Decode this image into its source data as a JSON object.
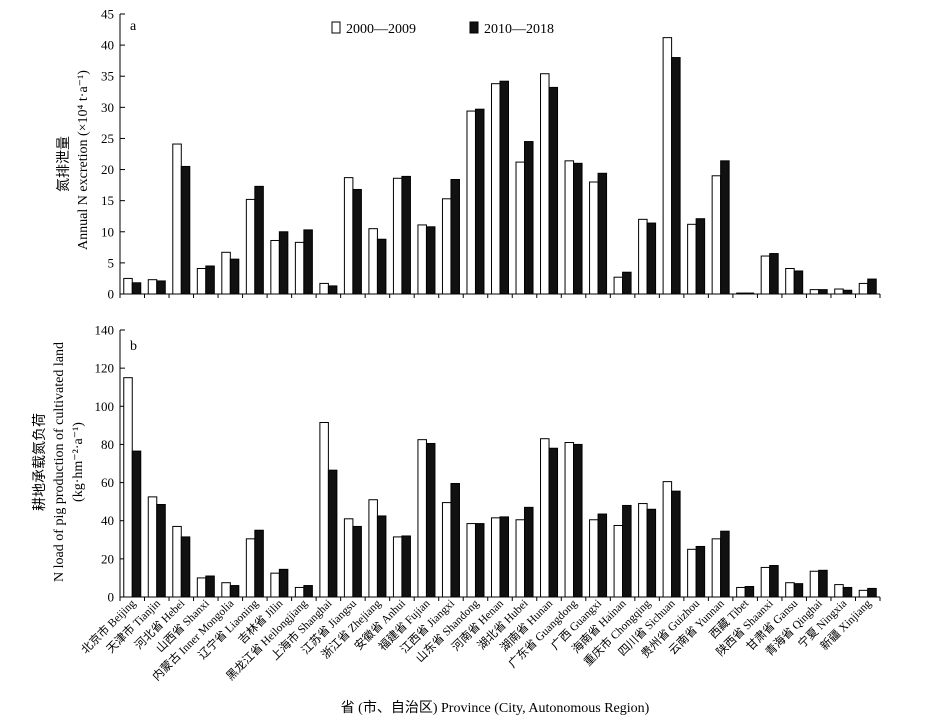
{
  "figure": {
    "xlabel": "省 (市、自治区) Province (City, Autonomous Region)",
    "legend": [
      "2000—2009",
      "2010—2018"
    ],
    "colors": {
      "series1": "#ffffff",
      "series2": "#111111",
      "stroke": "#000000"
    }
  },
  "chart_data": [
    {
      "type": "bar",
      "panel_label": "a",
      "ylabel_cn": "氮排泄量",
      "ylabel_en": "Annual N excretion (×10⁴ t·a⁻¹)",
      "ylim": [
        0,
        45
      ],
      "yticks": [
        0,
        5,
        10,
        15,
        20,
        25,
        30,
        35,
        40,
        45
      ],
      "grid": false,
      "legend_position": "top-left",
      "categories": [
        "北京市 Beijing",
        "天津市 Tianjin",
        "河北省 Hebei",
        "山西省 Shanxi",
        "内蒙古 Inner Mongolia",
        "辽宁省 Liaoning",
        "吉林省 Jilin",
        "黑龙江省 Heilongjiang",
        "上海市 Shanghai",
        "江苏省 Jiangsu",
        "浙江省 Zhejiang",
        "安徽省 Anhui",
        "福建省 Fujian",
        "江西省 Jiangxi",
        "山东省 Shandong",
        "河南省 Henan",
        "湖北省 Hubei",
        "湖南省 Hunan",
        "广东省 Guangdong",
        "广西 Guangxi",
        "海南省 Hainan",
        "重庆市 Chongqing",
        "四川省 Sichuan",
        "贵州省 Guizhou",
        "云南省 Yunnan",
        "西藏 Tibet",
        "陕西省 Shaanxi",
        "甘肃省 Gansu",
        "青海省 Qinghai",
        "宁夏 Ningxia",
        "新疆 Xinjiang"
      ],
      "series": [
        {
          "name": "2000—2009",
          "values": [
            2.5,
            2.3,
            24.1,
            4.1,
            6.7,
            15.2,
            8.6,
            8.3,
            1.7,
            18.7,
            10.5,
            18.6,
            11.1,
            15.3,
            29.4,
            33.8,
            21.2,
            35.4,
            21.4,
            18.0,
            2.7,
            12.0,
            41.2,
            11.2,
            19.0,
            0.15,
            6.1,
            4.1,
            0.7,
            0.8,
            1.7
          ]
        },
        {
          "name": "2010—2018",
          "values": [
            1.8,
            2.1,
            20.5,
            4.5,
            5.6,
            17.3,
            10.0,
            10.3,
            1.3,
            16.8,
            8.8,
            18.9,
            10.8,
            18.4,
            29.7,
            34.2,
            24.5,
            33.2,
            21.0,
            19.4,
            3.5,
            11.4,
            38.0,
            12.1,
            21.4,
            0.15,
            6.5,
            3.7,
            0.7,
            0.6,
            2.4
          ]
        }
      ]
    },
    {
      "type": "bar",
      "panel_label": "b",
      "ylabel_cn": "耕地承载氮负荷",
      "ylabel_en": "N load of pig production of cultivated land",
      "ylabel_unit": "(kg·hm⁻²·a⁻¹)",
      "ylim": [
        0,
        140
      ],
      "yticks": [
        0,
        20,
        40,
        60,
        80,
        100,
        120,
        140
      ],
      "grid": false,
      "categories": [
        "北京市 Beijing",
        "天津市 Tianjin",
        "河北省 Hebei",
        "山西省 Shanxi",
        "内蒙古 Inner Mongolia",
        "辽宁省 Liaoning",
        "吉林省 Jilin",
        "黑龙江省 Heilongjiang",
        "上海市 Shanghai",
        "江苏省 Jiangsu",
        "浙江省 Zhejiang",
        "安徽省 Anhui",
        "福建省 Fujian",
        "江西省 Jiangxi",
        "山东省 Shandong",
        "河南省 Henan",
        "湖北省 Hubei",
        "湖南省 Hunan",
        "广东省 Guangdong",
        "广西 Guangxi",
        "海南省 Hainan",
        "重庆市 Chongqing",
        "四川省 Sichuan",
        "贵州省 Guizhou",
        "云南省 Yunnan",
        "西藏 Tibet",
        "陕西省 Shaanxi",
        "甘肃省 Gansu",
        "青海省 Qinghai",
        "宁夏 Ningxia",
        "新疆 Xinjiang"
      ],
      "series": [
        {
          "name": "2000—2009",
          "values": [
            115.0,
            52.5,
            37.0,
            10.0,
            7.5,
            30.5,
            12.5,
            5.0,
            91.5,
            41.0,
            51.0,
            31.5,
            82.5,
            49.5,
            38.5,
            41.5,
            40.5,
            83.0,
            81.0,
            40.5,
            37.5,
            49.0,
            60.5,
            25.0,
            30.5,
            5.0,
            15.5,
            7.5,
            13.5,
            6.5,
            3.5
          ]
        },
        {
          "name": "2010—2018",
          "values": [
            76.5,
            48.5,
            31.5,
            11.0,
            6.0,
            35.0,
            14.5,
            6.0,
            66.5,
            37.0,
            42.5,
            32.0,
            80.5,
            59.5,
            38.5,
            42.0,
            47.0,
            78.0,
            80.0,
            43.5,
            48.0,
            46.0,
            55.5,
            26.5,
            34.5,
            5.5,
            16.5,
            7.0,
            14.0,
            5.0,
            4.5
          ]
        }
      ]
    }
  ]
}
